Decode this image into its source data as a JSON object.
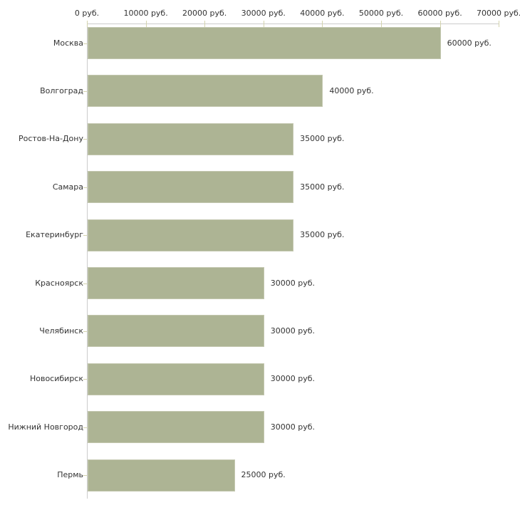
{
  "chart_data": {
    "type": "bar",
    "orientation": "horizontal",
    "title": "",
    "xlabel": "",
    "ylabel": "",
    "unit": "руб.",
    "categories": [
      "Москва",
      "Волгоград",
      "Ростов-На-Дону",
      "Самара",
      "Екатеринбург",
      "Красноярск",
      "Челябинск",
      "Новосибирск",
      "Нижний Новгород",
      "Пермь"
    ],
    "values": [
      60000,
      40000,
      35000,
      35000,
      35000,
      30000,
      30000,
      30000,
      30000,
      25000
    ],
    "value_labels": [
      "60000 руб.",
      "40000 руб.",
      "35000 руб.",
      "35000 руб.",
      "35000 руб.",
      "30000 руб.",
      "30000 руб.",
      "30000 руб.",
      "30000 руб.",
      "25000 руб."
    ],
    "x_ticks": {
      "values": [
        0,
        10000,
        20000,
        30000,
        40000,
        50000,
        60000,
        70000
      ],
      "labels": [
        "0 руб.",
        "10000 руб.",
        "20000 руб.",
        "30000 руб.",
        "40000 руб.",
        "50000 руб.",
        "60000 руб.",
        "70000 руб."
      ]
    },
    "xlim": [
      0,
      70000
    ],
    "grid": false,
    "legend": false,
    "colors": {
      "bar_fill": "#adb494",
      "bar_border": "#c3c7af",
      "axis_line": "#cccccc",
      "tick_mark": "#d4d4ae",
      "text": "#333333"
    }
  }
}
